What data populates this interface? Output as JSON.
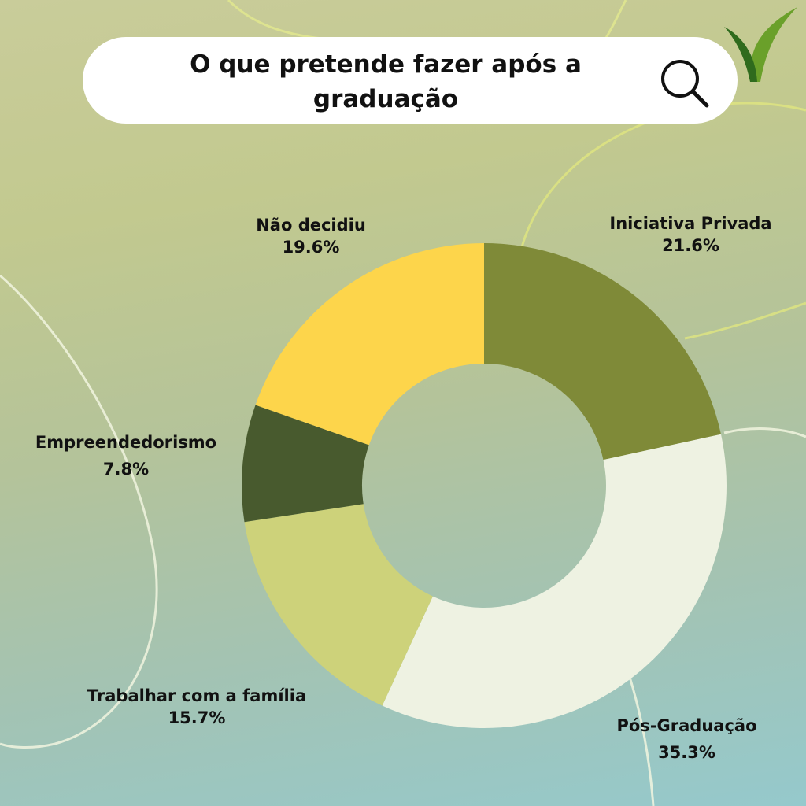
{
  "header": {
    "title_line1": "O que pretende fazer após a",
    "title_line2": "graduação"
  },
  "icons": {
    "search": "search-icon",
    "logo": "leaf-logo-icon"
  },
  "colors": {
    "Iniciativa Privada": "#7f8a38",
    "Pós-Graduação": "#eef2e2",
    "Trabalhar com a família": "#cdd27a",
    "Empreendedorismo": "#485a2e",
    "Não decidiu": "#fdd54b"
  },
  "chart_data": {
    "type": "pie",
    "variant": "donut",
    "title": "O que pretende fazer após a graduação",
    "slices": [
      {
        "label": "Iniciativa Privada",
        "value": 21.6,
        "value_label": "21.6%"
      },
      {
        "label": "Pós-Graduação",
        "value": 35.3,
        "value_label": "35.3%"
      },
      {
        "label": "Trabalhar com a família",
        "value": 15.7,
        "value_label": "15.7%"
      },
      {
        "label": "Empreendedorismo",
        "value": 7.8,
        "value_label": "7.8%"
      },
      {
        "label": "Não decidiu",
        "value": 19.6,
        "value_label": "19.6%"
      }
    ],
    "legend": "none"
  }
}
